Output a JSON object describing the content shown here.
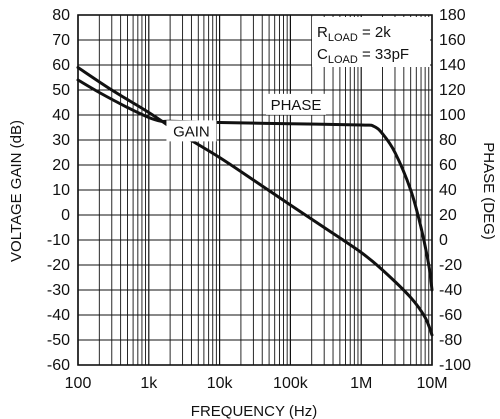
{
  "chart_data": {
    "type": "line",
    "xlabel": "FREQUENCY (Hz)",
    "ylabel_left": "VOLTAGE GAIN (dB)",
    "ylabel_right": "PHASE (DEG)",
    "x_scale": "log",
    "xlim": [
      100,
      10000000
    ],
    "ylim_left": [
      -60,
      80
    ],
    "ylim_right": [
      -100,
      180
    ],
    "grid": true,
    "x_ticks": [
      {
        "value": 100,
        "label": "100"
      },
      {
        "value": 1000,
        "label": "1k"
      },
      {
        "value": 10000,
        "label": "10k"
      },
      {
        "value": 100000,
        "label": "100k"
      },
      {
        "value": 1000000,
        "label": "1M"
      },
      {
        "value": 10000000,
        "label": "10M"
      }
    ],
    "y_ticks_left": [
      80,
      70,
      60,
      50,
      40,
      30,
      20,
      10,
      0,
      -10,
      -20,
      -30,
      -40,
      -50,
      -60
    ],
    "y_ticks_right": [
      180,
      160,
      140,
      120,
      100,
      80,
      60,
      40,
      20,
      0,
      -20,
      -40,
      -60,
      -80,
      -100
    ],
    "series": [
      {
        "name": "GAIN",
        "axis": "left",
        "points": [
          [
            100,
            59
          ],
          [
            300,
            50
          ],
          [
            1000,
            41
          ],
          [
            3000,
            32
          ],
          [
            10000,
            23
          ],
          [
            30000,
            14
          ],
          [
            100000,
            4
          ],
          [
            300000,
            -5
          ],
          [
            1000000,
            -15
          ],
          [
            2000000,
            -22
          ],
          [
            5000000,
            -33
          ],
          [
            8000000,
            -41
          ],
          [
            10000000,
            -48
          ]
        ]
      },
      {
        "name": "PHASE",
        "axis": "right",
        "points": [
          [
            100,
            128
          ],
          [
            200,
            118
          ],
          [
            500,
            106
          ],
          [
            1000,
            98
          ],
          [
            1500,
            95
          ],
          [
            2000,
            95
          ],
          [
            10000,
            94
          ],
          [
            100000,
            93
          ],
          [
            1000000,
            92
          ],
          [
            1500000,
            91
          ],
          [
            2000000,
            85
          ],
          [
            3000000,
            70
          ],
          [
            5000000,
            40
          ],
          [
            7000000,
            10
          ],
          [
            9000000,
            -20
          ],
          [
            10000000,
            -40
          ]
        ]
      }
    ],
    "annotations": [
      {
        "text": "PHASE",
        "x": 120000
      },
      {
        "text": "GAIN",
        "x": 4000
      }
    ],
    "legend_box": {
      "lines": [
        {
          "main": "R",
          "sub": "LOAD",
          "rest": " = 2k"
        },
        {
          "main": "C",
          "sub": "LOAD",
          "rest": " = 33pF"
        }
      ]
    }
  }
}
